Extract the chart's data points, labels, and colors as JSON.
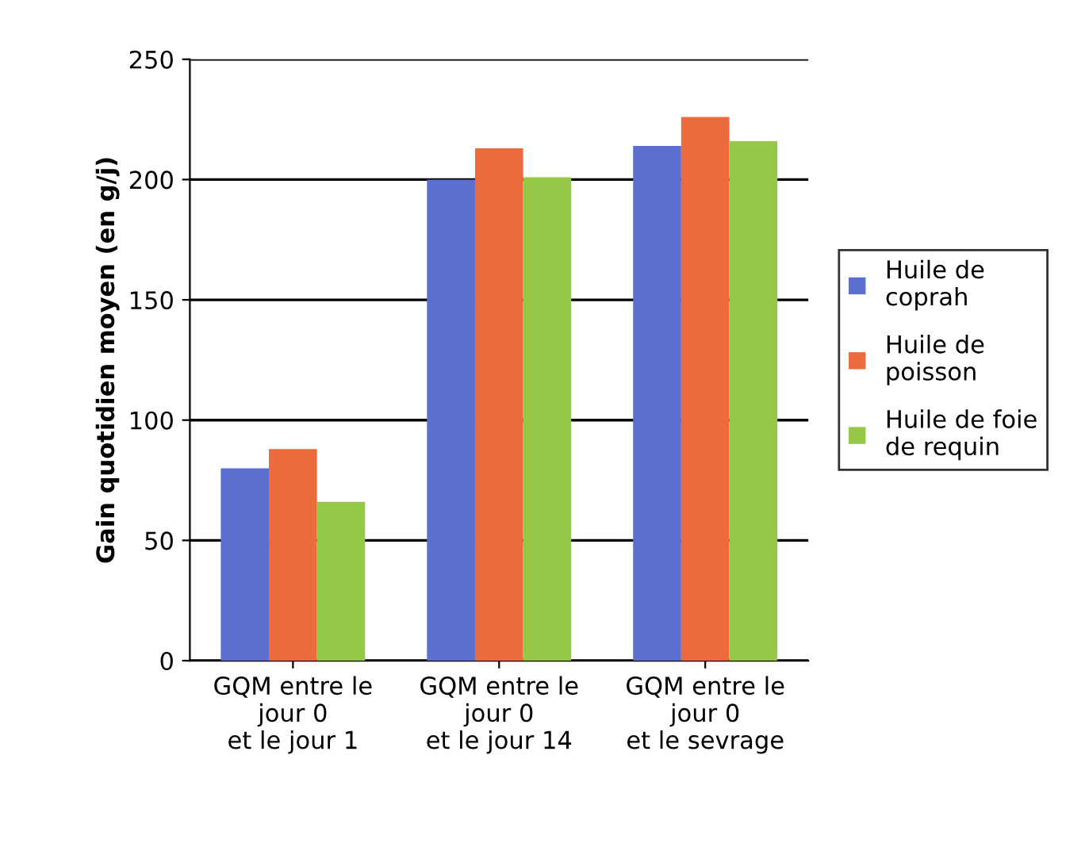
{
  "chart_data": {
    "type": "bar",
    "ylabel": "Gain quotidien moyen (en g/j)",
    "categories": [
      "GQM entre le\njour 0\net le jour 1",
      "GQM entre le\njour 0\net le jour 14",
      "GQM entre le\njour 0\net le sevrage"
    ],
    "series": [
      {
        "name": "Huile de\ncoprah",
        "color": "#5b6fd0",
        "values": [
          80,
          200,
          214
        ]
      },
      {
        "name": "Huile de\npoisson",
        "color": "#ec6a3c",
        "values": [
          88,
          213,
          226
        ]
      },
      {
        "name": "Huile de foie\nde requin",
        "color": "#96c848",
        "values": [
          66,
          201,
          216
        ]
      }
    ],
    "ylim": [
      0,
      250
    ],
    "yticks": [
      0,
      50,
      100,
      150,
      200,
      250
    ],
    "grid": "y",
    "legend": "right"
  }
}
